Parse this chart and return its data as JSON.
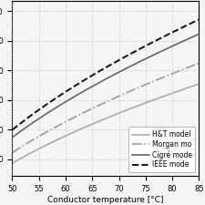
{
  "xlabel": "Conductor temperature [°C]",
  "xlim": [
    50,
    85
  ],
  "x_ticks": [
    50,
    55,
    60,
    65,
    70,
    75,
    80,
    85
  ],
  "models": {
    "cigre": {
      "label": "Cigré mode",
      "color": "#666666",
      "linestyle": "-",
      "linewidth": 1.2,
      "zorder": 3
    },
    "ht": {
      "label": "H&T model",
      "color": "#aaaaaa",
      "linestyle": "-",
      "linewidth": 1.2,
      "zorder": 2
    },
    "ieee": {
      "label": "IEEE mode",
      "color": "#111111",
      "linestyle": "--",
      "linewidth": 1.4,
      "zorder": 4
    },
    "morgan": {
      "label": "Morgan mo",
      "color": "#999999",
      "linestyle": "-.",
      "linewidth": 1.2,
      "zorder": 1
    }
  },
  "background_color": "#f5f5f5",
  "grid_color": "#bbbbbb",
  "legend_fontsize": 5.5,
  "tick_fontsize": 6.0,
  "xlabel_fontsize": 6.5
}
